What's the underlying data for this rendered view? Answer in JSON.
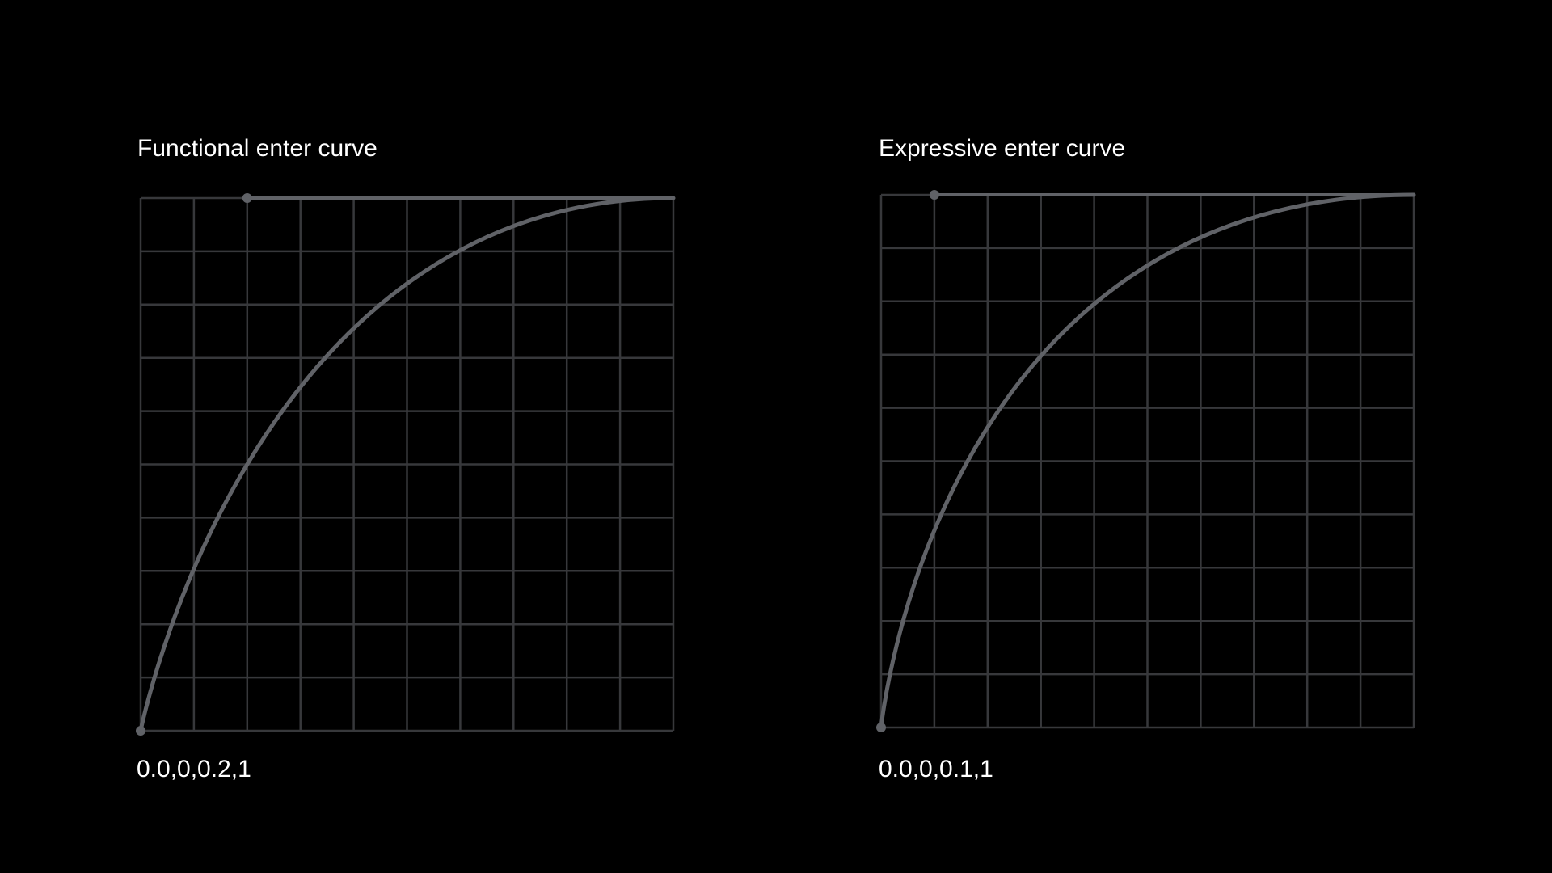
{
  "panels": [
    {
      "title": "Functional enter curve",
      "label": "0.0,0,0.2,1"
    },
    {
      "title": "Expressive enter curve",
      "label": "0.0,0,0.1,1"
    }
  ]
}
